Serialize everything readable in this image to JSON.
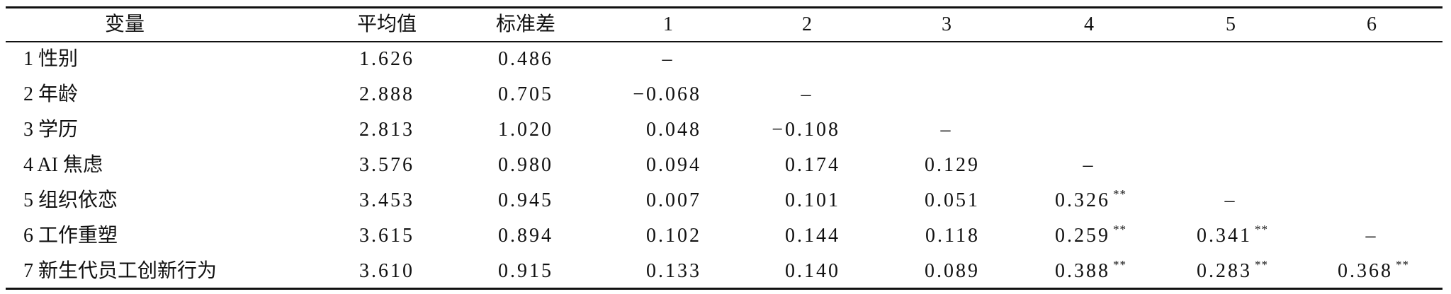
{
  "table": {
    "header": [
      "变量",
      "平均值",
      "标准差",
      "1",
      "2",
      "3",
      "4",
      "5",
      "6"
    ],
    "rows": [
      [
        "1 性别",
        "1.626",
        "0.486",
        "–"
      ],
      [
        "2 年龄",
        "2.888",
        "0.705",
        "−0.068",
        "–"
      ],
      [
        "3 学历",
        "2.813",
        "1.020",
        "0.048",
        "−0.108",
        "–"
      ],
      [
        "4 AI 焦虑",
        "3.576",
        "0.980",
        "0.094",
        "0.174",
        "0.129",
        "–"
      ],
      [
        "5 组织依恋",
        "3.453",
        "0.945",
        "0.007",
        "0.101",
        "0.051",
        {
          "text": "0.326",
          "mark": "**"
        },
        "–"
      ],
      [
        "6 工作重塑",
        "3.615",
        "0.894",
        "0.102",
        "0.144",
        "0.118",
        {
          "text": "0.259",
          "mark": "**"
        },
        {
          "text": "0.341",
          "mark": "**"
        },
        "–"
      ],
      [
        "7 新生代员工创新行为",
        "3.610",
        "0.915",
        "0.133",
        "0.140",
        "0.089",
        {
          "text": "0.388",
          "mark": "**"
        },
        {
          "text": "0.283",
          "mark": "**"
        },
        {
          "text": "0.368",
          "mark": "**"
        }
      ]
    ]
  }
}
